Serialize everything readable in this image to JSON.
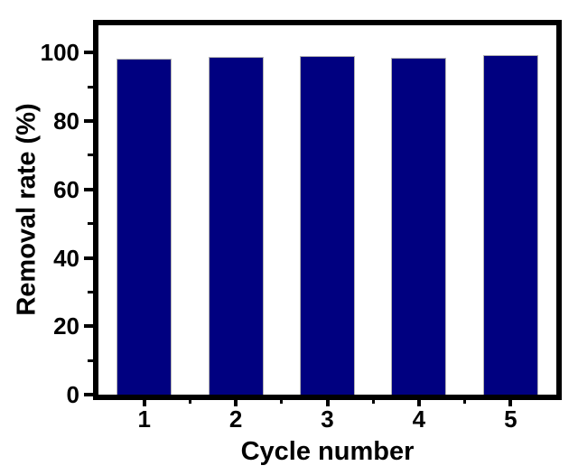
{
  "chart_data": {
    "type": "bar",
    "title": "",
    "xlabel": "Cycle number",
    "ylabel": "Removal rate (%)",
    "categories": [
      "1",
      "2",
      "3",
      "4",
      "5"
    ],
    "values": [
      98.3,
      98.7,
      99.1,
      98.4,
      99.2
    ],
    "ylim": [
      0,
      108
    ],
    "y_major_ticks": [
      0,
      20,
      40,
      60,
      80,
      100
    ],
    "y_minor_ticks": [
      10,
      30,
      50,
      70,
      90
    ],
    "bar_width_fraction": 0.6,
    "grid": false,
    "legend": null,
    "colors": {
      "bar_fill": "#000080",
      "bar_edge": "#b3b3b3",
      "axis": "#000000",
      "text": "#000000",
      "background": "#ffffff"
    }
  }
}
